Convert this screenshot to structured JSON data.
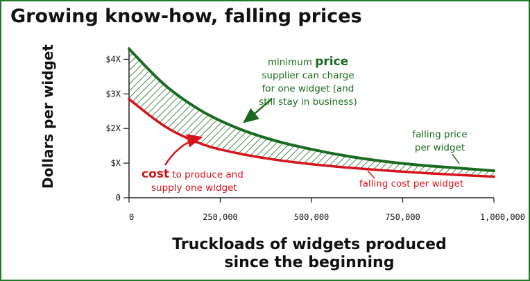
{
  "chart_data": {
    "type": "line",
    "title": "Growing know-how, falling prices",
    "xlabel_lines": [
      "Truckloads of widgets produced",
      "since the beginning"
    ],
    "ylabel": "Dollars per widget",
    "x_ticks": [
      {
        "value": 0,
        "label": "0"
      },
      {
        "value": 250000,
        "label": "250,000"
      },
      {
        "value": 500000,
        "label": "500,000"
      },
      {
        "value": 750000,
        "label": "750,000"
      },
      {
        "value": 1000000,
        "label": "1,000,000"
      }
    ],
    "y_ticks": [
      {
        "value": 0,
        "label": "0"
      },
      {
        "value": 1,
        "label": "$X"
      },
      {
        "value": 2,
        "label": "$2X"
      },
      {
        "value": 3,
        "label": "$3X"
      },
      {
        "value": 4,
        "label": "$4X"
      }
    ],
    "xlim": [
      0,
      1000000
    ],
    "ylim": [
      0,
      4.35
    ],
    "x": [
      0,
      100000,
      200000,
      300000,
      400000,
      500000,
      600000,
      700000,
      800000,
      900000,
      1000000
    ],
    "series": [
      {
        "name": "falling price per widget",
        "color": "#1a6b1f",
        "values": [
          4.3,
          3.24,
          2.5,
          2.0,
          1.65,
          1.4,
          1.2,
          1.05,
          0.94,
          0.86,
          0.78
        ]
      },
      {
        "name": "falling cost per widget",
        "color": "#d6141b",
        "values": [
          2.85,
          2.05,
          1.55,
          1.28,
          1.1,
          0.97,
          0.87,
          0.79,
          0.72,
          0.66,
          0.61
        ]
      }
    ],
    "shaded_band": {
      "between": [
        "falling price per widget",
        "falling cost per widget"
      ],
      "pattern": "diagonal-hatch",
      "color": "#1a6b1f"
    },
    "annotations": {
      "price_note": {
        "prefix": "minimum ",
        "bold": "price",
        "lines": [
          "supplier can charge",
          "for one widget (and",
          "still stay in business)"
        ],
        "color": "#1a6b1f"
      },
      "cost_note": {
        "bold": "cost",
        "suffix": " to produce and",
        "lines": [
          "supply one widget"
        ],
        "color": "#d6141b"
      },
      "price_label_lines": [
        "falling price",
        "per widget"
      ],
      "cost_label": "falling cost per widget"
    }
  }
}
